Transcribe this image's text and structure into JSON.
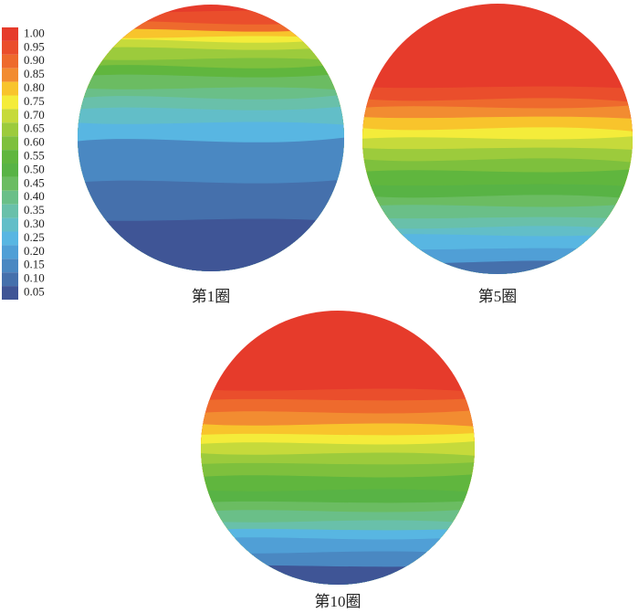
{
  "colorbar": {
    "levels": [
      {
        "label": "1.00",
        "color": "#e63b2b"
      },
      {
        "label": "0.95",
        "color": "#ea4e2c"
      },
      {
        "label": "0.90",
        "color": "#ee6a2d"
      },
      {
        "label": "0.85",
        "color": "#f28c31"
      },
      {
        "label": "0.80",
        "color": "#f8c42c"
      },
      {
        "label": "0.75",
        "color": "#f4ec3a"
      },
      {
        "label": "0.70",
        "color": "#c6da3b"
      },
      {
        "label": "0.65",
        "color": "#9ccb3c"
      },
      {
        "label": "0.60",
        "color": "#7ec03d"
      },
      {
        "label": "0.55",
        "color": "#60b63e"
      },
      {
        "label": "0.50",
        "color": "#58b345"
      },
      {
        "label": "0.45",
        "color": "#6bbc62"
      },
      {
        "label": "0.40",
        "color": "#6abf88"
      },
      {
        "label": "0.35",
        "color": "#69c0aa"
      },
      {
        "label": "0.30",
        "color": "#62bec8"
      },
      {
        "label": "0.25",
        "color": "#58b6e2"
      },
      {
        "label": "0.20",
        "color": "#509fd6"
      },
      {
        "label": "0.15",
        "color": "#4a88c2"
      },
      {
        "label": "0.10",
        "color": "#4570ac"
      },
      {
        "label": "0.05",
        "color": "#3f5596"
      }
    ]
  },
  "panels": [
    {
      "label": "第1圈"
    },
    {
      "label": "第5圈"
    },
    {
      "label": "第10圈"
    }
  ]
}
